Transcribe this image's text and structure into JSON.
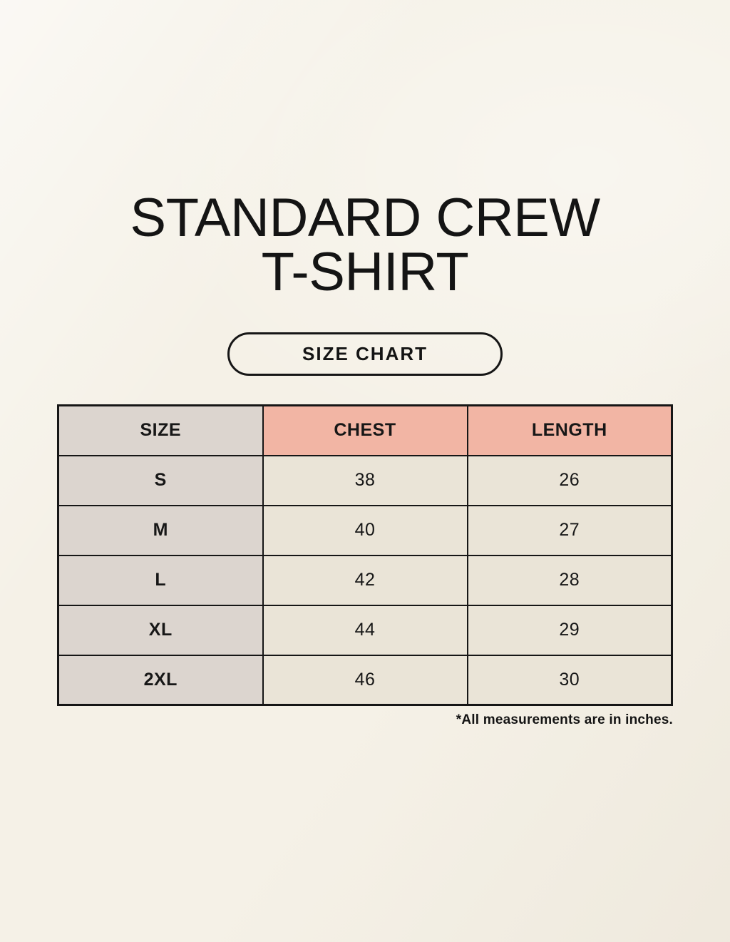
{
  "page": {
    "title": {
      "line1": "STANDARD CREW",
      "line2": "T-SHIRT"
    },
    "badge": {
      "label": "SIZE CHART"
    },
    "footnote": "*All measurements are in inches."
  },
  "chart_data": {
    "type": "table",
    "title": "STANDARD CREW T-SHIRT SIZE CHART",
    "columns": [
      "SIZE",
      "CHEST",
      "LENGTH"
    ],
    "rows": [
      {
        "size": "S",
        "chest": "38",
        "length": "26"
      },
      {
        "size": "M",
        "chest": "40",
        "length": "27"
      },
      {
        "size": "L",
        "chest": "42",
        "length": "28"
      },
      {
        "size": "XL",
        "chest": "44",
        "length": "29"
      },
      {
        "size": "2XL",
        "chest": "46",
        "length": "30"
      }
    ],
    "units": "inches"
  },
  "colors": {
    "page_background": "#f5f1e7",
    "size_column_bg": "#dcd5cf",
    "measure_header_bg": "#f2b5a4",
    "data_cell_bg": "#eae4d7",
    "border": "#161616",
    "text": "#141414"
  }
}
